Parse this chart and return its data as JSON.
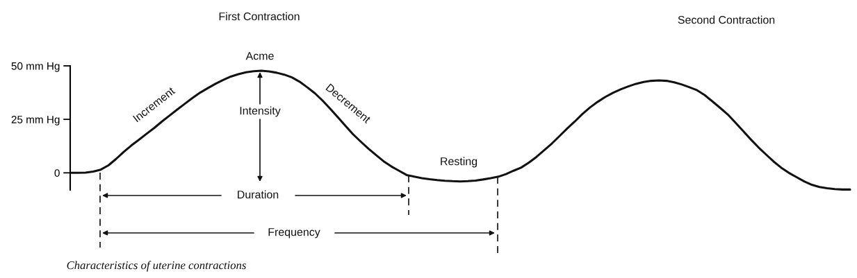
{
  "chart_data": {
    "type": "line",
    "categories": [
      null,
      null,
      null,
      null,
      null,
      null,
      null,
      null,
      null,
      null,
      null,
      null,
      null,
      null,
      null,
      null,
      null,
      null,
      null,
      null,
      null,
      null,
      null,
      null,
      null,
      null,
      null,
      null,
      null,
      null,
      null,
      null,
      null,
      null,
      null,
      null,
      null,
      null,
      null,
      null,
      null,
      null,
      null,
      null,
      null,
      null,
      null,
      null,
      null,
      null,
      null,
      null,
      null,
      null,
      null,
      null,
      null,
      null,
      null,
      null,
      null,
      null,
      null,
      null,
      null,
      null,
      null,
      null,
      null,
      null,
      null,
      null,
      null,
      null,
      null,
      null,
      null,
      null,
      null,
      null,
      null,
      null,
      null,
      null,
      null,
      null,
      null,
      null,
      null,
      null,
      null,
      null,
      null,
      null,
      null,
      null,
      null,
      null,
      null,
      null,
      null,
      null,
      null
    ],
    "series": [
      {
        "color": "#111111",
        "values": [
          0,
          0,
          0.1,
          0.6,
          1.5,
          3.5,
          6.5,
          9.8,
          12.8,
          15.5,
          18.3,
          21,
          24,
          26.8,
          29.6,
          32.3,
          35,
          37.5,
          39.6,
          41.6,
          43.4,
          45,
          46.1,
          47,
          47.5,
          47.7,
          47.4,
          46.8,
          45.9,
          44.6,
          42.6,
          40,
          37.2,
          33.8,
          30,
          26,
          22,
          18,
          14.6,
          11.3,
          8.3,
          5.4,
          3,
          1,
          -1,
          -1.8,
          -2.5,
          -3,
          -3.4,
          -3.7,
          -3.9,
          -4,
          -3.9,
          -3.6,
          -3.1,
          -2.5,
          -1.8,
          -0.6,
          1,
          2.5,
          4.8,
          7.5,
          10.6,
          13.7,
          17.2,
          20.7,
          24,
          27.5,
          30.6,
          33.2,
          35.5,
          37.4,
          39,
          40.4,
          41.6,
          42.5,
          43,
          43.2,
          43,
          42.3,
          41.3,
          40,
          38.6,
          36.3,
          33.4,
          30.4,
          27.3,
          23.5,
          19.6,
          15.7,
          12,
          8.6,
          5.3,
          2.4,
          0,
          -2,
          -4,
          -5.6,
          -6.6,
          -7.2,
          -7.6,
          -7.8,
          -7.8
        ]
      }
    ],
    "ylim": [
      -8,
      50
    ],
    "yticks": [
      0,
      {
        "value": 25,
        "label": "25 mm Hg"
      },
      {
        "value": 50,
        "label": "50 mm Hg"
      }
    ],
    "tick_labels": "y",
    "grid": false,
    "marker": "none",
    "line_style": "solid",
    "annotations": [
      "First Contraction",
      "Second Contraction",
      "Acme",
      "Increment",
      "Decrement",
      "Intensity",
      "Resting",
      "Duration",
      "Frequency",
      "Characteristics of uterine contractions"
    ]
  }
}
